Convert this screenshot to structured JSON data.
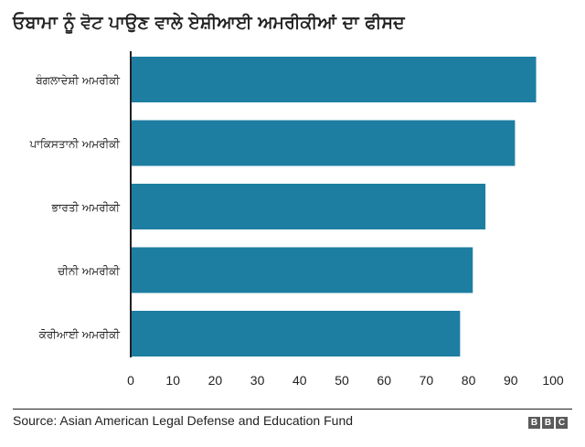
{
  "title": "ਓਬਾਮਾ ਨੂੰ ਵੋਟ ਪਾਉਣ ਵਾਲੇ ਏਸ਼ੀਆਈ ਅਮਰੀਕੀਆਂ ਦਾ ਫੀਸਦ",
  "source": "Source: Asian American Legal Defense and Education Fund",
  "logo": [
    "B",
    "B",
    "C"
  ],
  "colors": {
    "bar": "#1d7ea1",
    "axis": "#222222"
  },
  "chart_data": {
    "type": "bar",
    "orientation": "horizontal",
    "categories": [
      "ਬੰਗਲਾਦੇਸ਼ੀ ਅਮਰੀਕੀ",
      "ਪਾਕਿਸਤਾਨੀ ਅਮਰੀਕੀ",
      "ਭਾਰਤੀ ਅਮਰੀਕੀ",
      "ਚੀਨੀ ਅਮਰੀਕੀ",
      "ਕੋਰੀਆਈ ਅਮਰੀਕੀ"
    ],
    "values": [
      96,
      91,
      84,
      81,
      78
    ],
    "xlim": [
      0,
      100
    ],
    "xticks": [
      0,
      10,
      20,
      30,
      40,
      50,
      60,
      70,
      80,
      90,
      100
    ],
    "grid": false
  }
}
